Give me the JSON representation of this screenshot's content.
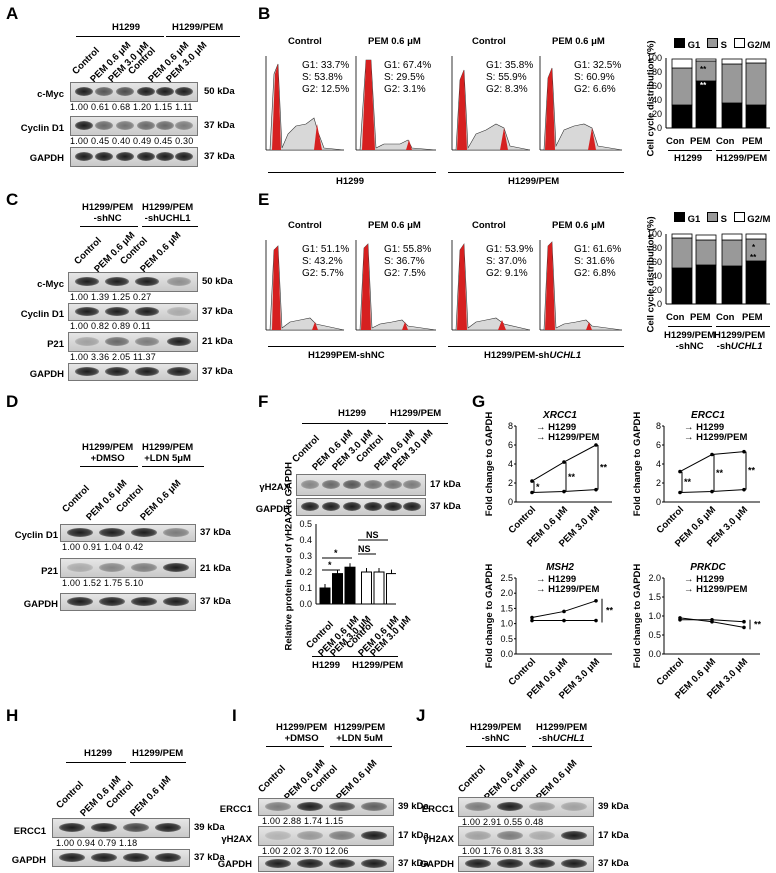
{
  "panels": {
    "A": "A",
    "B": "B",
    "C": "C",
    "D": "D",
    "E": "E",
    "F": "F",
    "G": "G",
    "H": "H",
    "I": "I",
    "J": "J"
  },
  "panel_a": {
    "groups": [
      "H1299",
      "H1299/PEM"
    ],
    "lanes": [
      "Control",
      "PEM 0.6 μM",
      "PEM 3.0 μM",
      "Control",
      "PEM 0.6 μM",
      "PEM 3.0 μM"
    ],
    "rows": [
      {
        "label": "c-Myc",
        "kda": "50 kDa",
        "quant": "1.00  0.61  0.68  1.20  1.15  1.11"
      },
      {
        "label": "Cyclin D1",
        "kda": "37 kDa",
        "quant": "1.00  0.45  0.40  0.49  0.45  0.30"
      },
      {
        "label": "GAPDH",
        "kda": "37 kDa",
        "quant": ""
      }
    ]
  },
  "panel_b": {
    "col_labels": [
      "Control",
      "PEM 0.6 μM",
      "Control",
      "PEM 0.6 μM"
    ],
    "stats": [
      [
        "G1: 33.7%",
        "S: 53.8%",
        "G2: 12.5%"
      ],
      [
        "G1: 67.4%",
        "S: 29.5%",
        "G2: 3.1%"
      ],
      [
        "G1: 35.8%",
        "S: 55.9%",
        "G2: 8.3%"
      ],
      [
        "G1: 32.5%",
        "S: 60.9%",
        "G2: 6.6%"
      ]
    ],
    "group_labels": [
      "H1299",
      "H1299/PEM"
    ],
    "bar": {
      "ylabel": "Cell cycle distribution (%)",
      "legend": [
        "G1",
        "S",
        "G2/M"
      ],
      "ticks": [
        "0",
        "20",
        "40",
        "60",
        "80",
        "100"
      ],
      "categories": [
        "Con",
        "PEM",
        "Con",
        "PEM"
      ],
      "groups": [
        "H1299",
        "H1299/PEM"
      ],
      "stars": [
        "**",
        "**"
      ]
    }
  },
  "panel_c": {
    "groups": [
      "H1299/PEM",
      "-shNC",
      "H1299/PEM",
      "-shUCHL1"
    ],
    "lanes": [
      "Control",
      "PEM 0.6 μM",
      "Control",
      "PEM 0.6 μM"
    ],
    "rows": [
      {
        "label": "c-Myc",
        "kda": "50 kDa",
        "quant": "1.00  1.39  1.25  0.27"
      },
      {
        "label": "Cyclin D1",
        "kda": "37 kDa",
        "quant": "1.00  0.82  0.89  0.11"
      },
      {
        "label": "P21",
        "kda": "21 kDa",
        "quant": "1.00  3.36  2.05  11.37"
      },
      {
        "label": "GAPDH",
        "kda": "37 kDa",
        "quant": ""
      }
    ]
  },
  "panel_d": {
    "groups": [
      "H1299/PEM",
      "+DMSO",
      "H1299/PEM",
      "+LDN 5μM"
    ],
    "lanes": [
      "Control",
      "PEM 0.6 μM",
      "Control",
      "PEM 0.6 μM"
    ],
    "rows": [
      {
        "label": "Cyclin D1",
        "kda": "37 kDa",
        "quant": "1.00  0.91  1.04  0.42"
      },
      {
        "label": "P21",
        "kda": "21 kDa",
        "quant": "1.00  1.52  1.75  5.10"
      },
      {
        "label": "GAPDH",
        "kda": "37 kDa",
        "quant": ""
      }
    ]
  },
  "panel_e": {
    "col_labels": [
      "Control",
      "PEM 0.6 μM",
      "Control",
      "PEM 0.6 μM"
    ],
    "stats": [
      [
        "G1: 51.1%",
        "S: 43.2%",
        "G2: 5.7%"
      ],
      [
        "G1: 55.8%",
        "S: 36.7%",
        "G2: 7.5%"
      ],
      [
        "G1: 53.9%",
        "S: 37.0%",
        "G2: 9.1%"
      ],
      [
        "G1: 61.6%",
        "S: 31.6%",
        "G2: 6.8%"
      ]
    ],
    "group_labels": [
      "H1299PEM-shNC",
      "H1299/PEM-sh",
      "UCHL1"
    ],
    "bar": {
      "ylabel": "Cell cycle distribution (%)",
      "legend": [
        "G1",
        "S",
        "G2/M"
      ],
      "ticks": [
        "0",
        "20",
        "40",
        "60",
        "80",
        "100"
      ],
      "categories": [
        "Con",
        "PEM",
        "Con",
        "PEM"
      ],
      "groups": [
        "H1299/PEM",
        "-shNC",
        "H1299/PEM",
        "-sh",
        "UCHL1"
      ],
      "stars": [
        "*",
        "**"
      ]
    }
  },
  "panel_f": {
    "groups": [
      "H1299",
      "H1299/PEM"
    ],
    "lanes": [
      "Control",
      "PEM 0.6 μM",
      "PEM 3.0 μM",
      "Control",
      "PEM 0.6 μM",
      "PEM 3.0 μM"
    ],
    "rows": [
      {
        "label": "γH2AX",
        "kda": "17 kDa"
      },
      {
        "label": "GAPDH",
        "kda": "37 kDa"
      }
    ],
    "bar": {
      "ylabel": "Relative protein level of γH2AX to GAPDH",
      "ticks": [
        "0.0",
        "0.1",
        "0.2",
        "0.3",
        "0.4",
        "0.5"
      ],
      "values": [
        0.1,
        0.19,
        0.23,
        0.2,
        0.2,
        0.19
      ],
      "sig": [
        "*",
        "*",
        "NS",
        "NS"
      ],
      "categories": [
        "Control",
        "PEM 0.6 μM",
        "PEM 3.0 μM",
        "Control",
        "PEM 0.6 μM",
        "PEM 3.0 μM"
      ],
      "groups": [
        "H1299",
        "H1299/PEM"
      ]
    }
  },
  "panel_g": {
    "ylabel": "Fold change to GAPDH",
    "categories": [
      "Control",
      "PEM 0.6 μM",
      "PEM 3.0 μM"
    ],
    "legend": [
      "H1299",
      "H1299/PEM"
    ],
    "charts": [
      {
        "title": "XRCC1",
        "ticks": [
          "0",
          "2",
          "4",
          "6",
          "8"
        ],
        "h1299": [
          1.0,
          1.1,
          1.3
        ],
        "pem": [
          2.2,
          4.2,
          6.0
        ],
        "stars": [
          "*",
          "**",
          "**"
        ]
      },
      {
        "title": "ERCC1",
        "ticks": [
          "0",
          "2",
          "4",
          "6",
          "8"
        ],
        "h1299": [
          1.0,
          1.1,
          1.3
        ],
        "pem": [
          3.2,
          5.0,
          5.3
        ],
        "stars": [
          "**",
          "**",
          "**"
        ]
      },
      {
        "title": "MSH2",
        "ticks": [
          "0.0",
          "0.5",
          "1.0",
          "1.5",
          "2.0",
          "2.5"
        ],
        "h1299": [
          1.1,
          1.1,
          1.1
        ],
        "pem": [
          1.2,
          1.4,
          1.75
        ],
        "stars": [
          "**"
        ]
      },
      {
        "title": "PRKDC",
        "ticks": [
          "0.0",
          "0.5",
          "1.0",
          "1.5",
          "2.0"
        ],
        "h1299": [
          0.95,
          0.85,
          0.7
        ],
        "pem": [
          0.9,
          0.9,
          0.85
        ],
        "stars": [
          "**"
        ]
      }
    ]
  },
  "panel_h": {
    "groups": [
      "H1299",
      "H1299/PEM"
    ],
    "lanes": [
      "Control",
      "PEM 0.6 μM",
      "Control",
      "PEM 0.6 μM"
    ],
    "rows": [
      {
        "label": "ERCC1",
        "kda": "39 kDa",
        "quant": "1.00  0.94  0.79  1.18"
      },
      {
        "label": "GAPDH",
        "kda": "37 kDa",
        "quant": ""
      }
    ]
  },
  "panel_i": {
    "groups": [
      "H1299/PEM",
      "+DMSO",
      "H1299/PEM",
      "+LDN 5uM"
    ],
    "lanes": [
      "Control",
      "PEM 0.6 μM",
      "Control",
      "PEM 0.6 μM"
    ],
    "rows": [
      {
        "label": "ERCC1",
        "kda": "39 kDa",
        "quant": "1.00  2.88  1.74  1.15"
      },
      {
        "label": "γH2AX",
        "kda": "17 kDa",
        "quant": "1.00  2.02  3.70  12.06"
      },
      {
        "label": "GAPDH",
        "kda": "37 kDa",
        "quant": ""
      }
    ]
  },
  "panel_j": {
    "groups": [
      "H1299/PEM",
      "-shNC",
      "H1299/PEM",
      "-sh",
      "UCHL1"
    ],
    "lanes": [
      "Control",
      "PEM 0.6 μM",
      "Control",
      "PEM 0.6 μM"
    ],
    "rows": [
      {
        "label": "ERCC1",
        "kda": "39 kDa",
        "quant": "1.00  2.91  0.55  0.48"
      },
      {
        "label": "γH2AX",
        "kda": "17 kDa",
        "quant": "1.00  1.76  0.81  3.33"
      },
      {
        "label": "GAPDH",
        "kda": "37 kDa",
        "quant": ""
      }
    ]
  }
}
